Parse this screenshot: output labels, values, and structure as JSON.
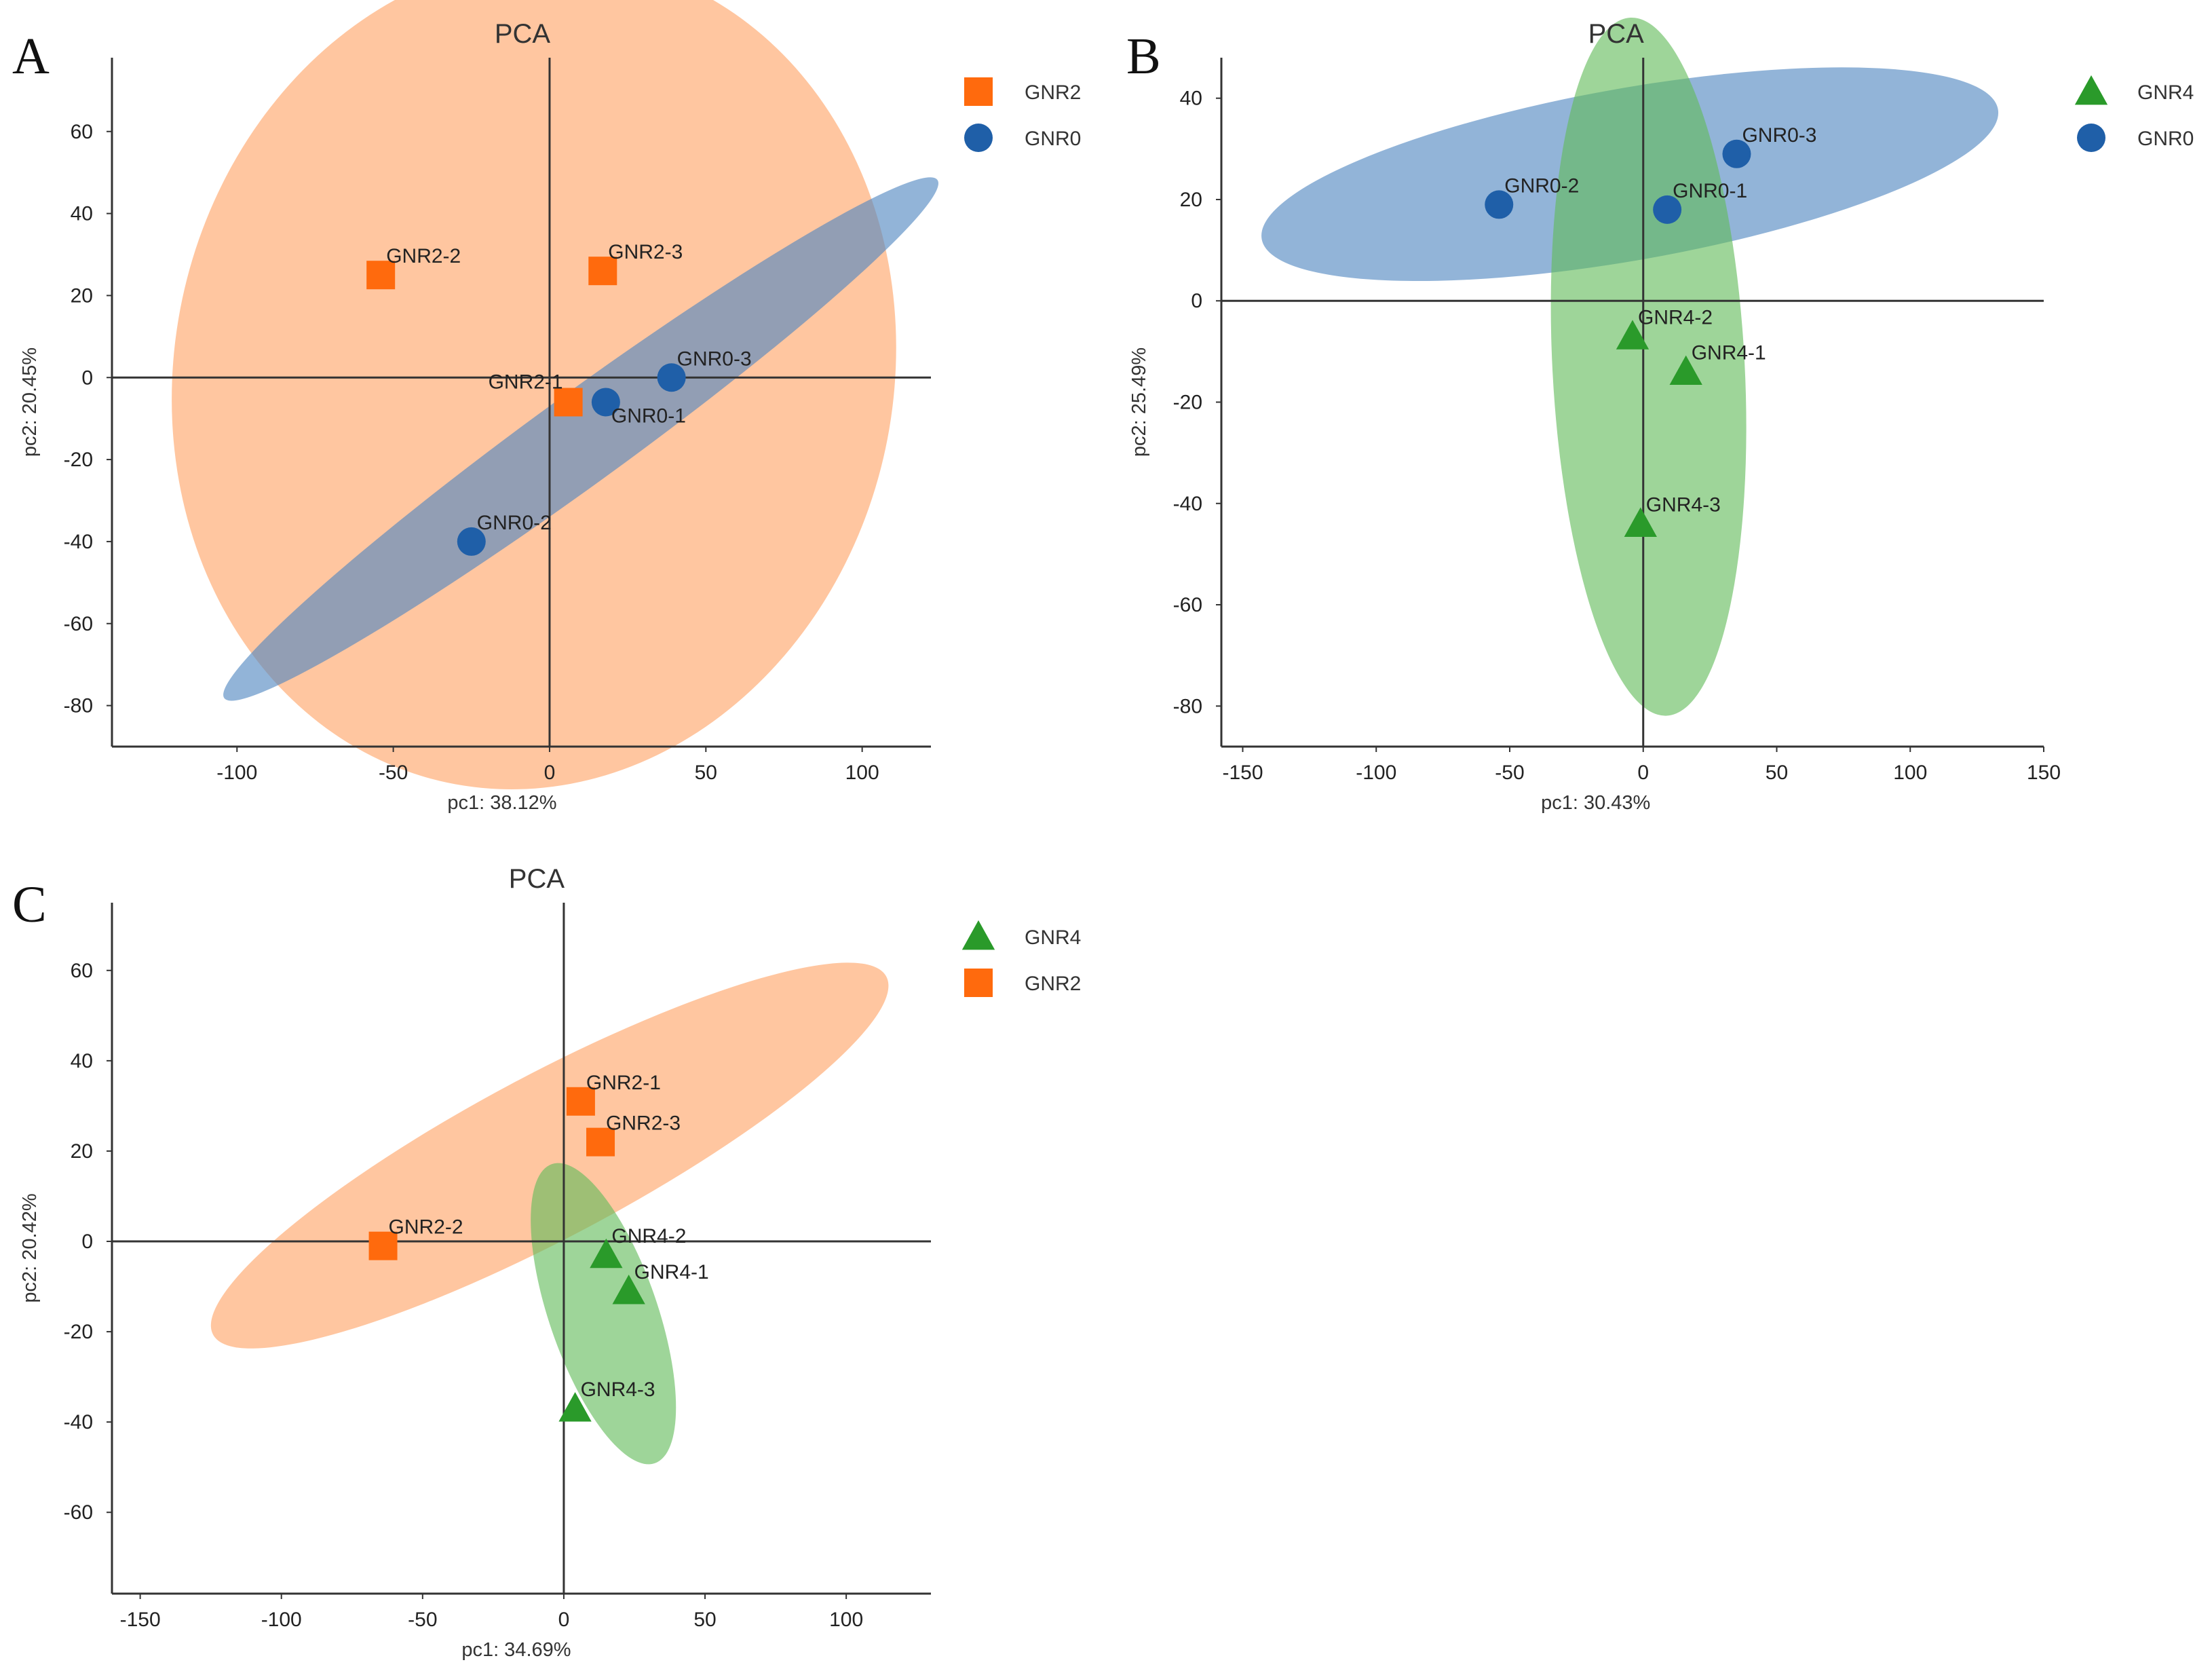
{
  "colors": {
    "GNR0": "#1f5fa8",
    "GNR2": "#ff6a0d",
    "GNR4": "#2a9a2a",
    "GNR0_fill": "#4f86c0",
    "GNR2_fill": "#ffa366",
    "GNR4_fill": "#63bb5a"
  },
  "chart_data": [
    {
      "type": "scatter",
      "panel": "A",
      "title": "PCA",
      "xlabel": "pc1: 38.12%",
      "ylabel": "pc2: 20.45%",
      "xlim": [
        -140,
        122
      ],
      "ylim": [
        -90,
        78
      ],
      "xticks": [
        -100,
        -50,
        0,
        50,
        100
      ],
      "yticks": [
        -80,
        -60,
        -40,
        -20,
        0,
        20,
        40,
        60
      ],
      "legend": [
        {
          "group": "GNR2",
          "marker": "square"
        },
        {
          "group": "GNR0",
          "marker": "circle"
        }
      ],
      "ellipses": [
        {
          "group": "GNR2",
          "cx": -5,
          "cy": 1,
          "rx": 115,
          "ry": 102,
          "angle": -12
        },
        {
          "group": "GNR0",
          "cx": 10,
          "cy": -15,
          "rx": 141,
          "ry": 11,
          "angle": 36
        }
      ],
      "points": [
        {
          "label": "GNR2-2",
          "group": "GNR2",
          "marker": "square",
          "x": -54,
          "y": 25
        },
        {
          "label": "GNR2-3",
          "group": "GNR2",
          "marker": "square",
          "x": 17,
          "y": 26
        },
        {
          "label": "GNR2-1",
          "group": "GNR2",
          "marker": "square",
          "x": 6,
          "y": -6,
          "label_pos": "left"
        },
        {
          "label": "GNR0-3",
          "group": "GNR0",
          "marker": "circle",
          "x": 39,
          "y": 0
        },
        {
          "label": "GNR0-1",
          "group": "GNR0",
          "marker": "circle",
          "x": 18,
          "y": -6,
          "label_pos": "below"
        },
        {
          "label": "GNR0-2",
          "group": "GNR0",
          "marker": "circle",
          "x": -25,
          "y": -40
        }
      ]
    },
    {
      "type": "scatter",
      "panel": "B",
      "title": "PCA",
      "xlabel": "pc1: 30.43%",
      "ylabel": "pc2: 25.49%",
      "xlim": [
        -158,
        150
      ],
      "ylim": [
        -88,
        48
      ],
      "xticks": [
        -150,
        -100,
        -50,
        0,
        50,
        100,
        150
      ],
      "yticks": [
        -80,
        -60,
        -40,
        -20,
        0,
        20,
        40
      ],
      "legend": [
        {
          "group": "GNR4",
          "marker": "triangle"
        },
        {
          "group": "GNR0",
          "marker": "circle"
        }
      ],
      "ellipses": [
        {
          "group": "GNR0",
          "cx": -5,
          "cy": 25,
          "rx": 140,
          "ry": 17,
          "angle": 10
        },
        {
          "group": "GNR4",
          "cx": 2,
          "cy": -13,
          "rx": 36,
          "ry": 69,
          "angle": 3
        }
      ],
      "points": [
        {
          "label": "GNR0-3",
          "group": "GNR0",
          "marker": "circle",
          "x": 35,
          "y": 29
        },
        {
          "label": "GNR0-2",
          "group": "GNR0",
          "marker": "circle",
          "x": -54,
          "y": 19
        },
        {
          "label": "GNR0-1",
          "group": "GNR0",
          "marker": "circle",
          "x": 9,
          "y": 18
        },
        {
          "label": "GNR4-2",
          "group": "GNR4",
          "marker": "triangle",
          "x": -4,
          "y": -7
        },
        {
          "label": "GNR4-1",
          "group": "GNR4",
          "marker": "triangle",
          "x": 16,
          "y": -14
        },
        {
          "label": "GNR4-3",
          "group": "GNR4",
          "marker": "triangle",
          "x": -1,
          "y": -44
        }
      ]
    },
    {
      "type": "scatter",
      "panel": "C",
      "title": "PCA",
      "xlabel": "pc1: 34.69%",
      "ylabel": "pc2: 20.42%",
      "xlim": [
        -160,
        130
      ],
      "ylim": [
        -78,
        75
      ],
      "xticks": [
        -150,
        -100,
        -50,
        0,
        50,
        100
      ],
      "yticks": [
        -60,
        -40,
        -20,
        0,
        20,
        40,
        60
      ],
      "legend": [
        {
          "group": "GNR4",
          "marker": "triangle"
        },
        {
          "group": "GNR2",
          "marker": "square"
        }
      ],
      "ellipses": [
        {
          "group": "GNR2",
          "cx": -5,
          "cy": 19,
          "rx": 135,
          "ry": 18,
          "angle": 28
        },
        {
          "group": "GNR4",
          "cx": 14,
          "cy": -16,
          "rx": 56,
          "ry": 12,
          "angle": -71
        }
      ],
      "points": [
        {
          "label": "GNR2-1",
          "group": "GNR2",
          "marker": "square",
          "x": 6,
          "y": 31
        },
        {
          "label": "GNR2-3",
          "group": "GNR2",
          "marker": "square",
          "x": 13,
          "y": 22
        },
        {
          "label": "GNR2-2",
          "group": "GNR2",
          "marker": "square",
          "x": -64,
          "y": -1
        },
        {
          "label": "GNR4-2",
          "group": "GNR4",
          "marker": "triangle",
          "x": 15,
          "y": -3
        },
        {
          "label": "GNR4-1",
          "group": "GNR4",
          "marker": "triangle",
          "x": 23,
          "y": -11
        },
        {
          "label": "GNR4-3",
          "group": "GNR4",
          "marker": "triangle",
          "x": 4,
          "y": -37
        }
      ]
    }
  ]
}
